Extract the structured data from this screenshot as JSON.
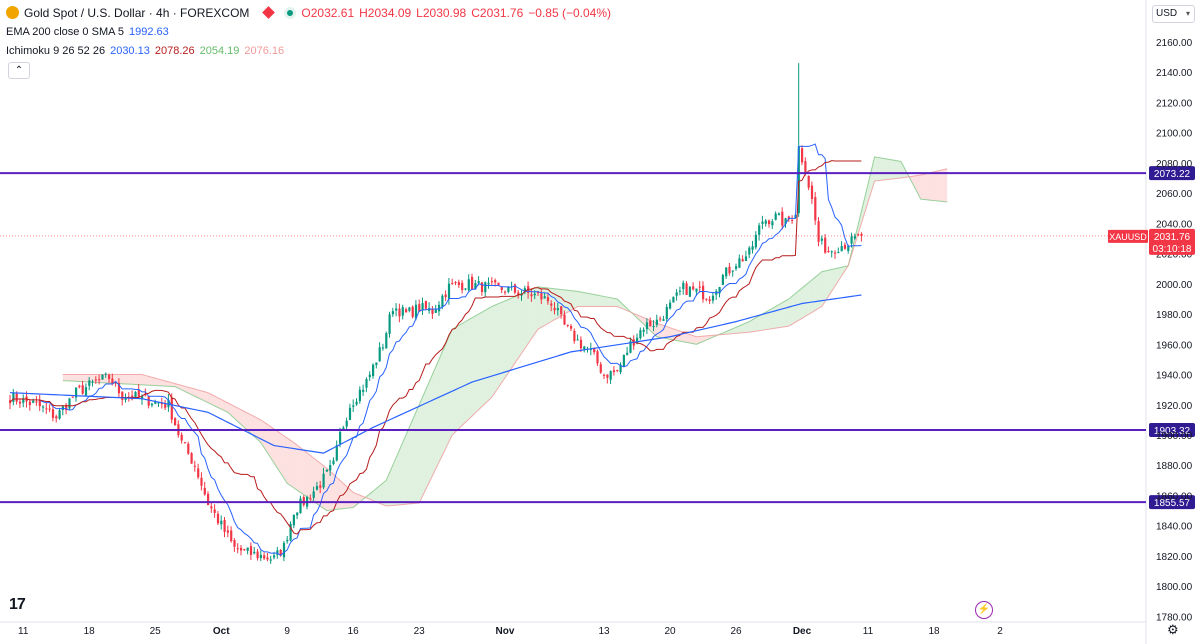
{
  "header": {
    "symbol_title": "Gold Spot / U.S. Dollar · 4h · FOREXCOM",
    "ohlc": {
      "o": "O2032.61",
      "h": "H2034.09",
      "l": "L2030.98",
      "c": "C2031.76",
      "change": "−0.85 (−0.04%)"
    },
    "ema_label": "EMA 200 close 0 SMA 5",
    "ema_value": "1992.63",
    "ichimoku_label": "Ichimoku 9 26 52 26",
    "ichimoku_values": [
      "2030.13",
      "2078.26",
      "2054.19",
      "2076.16"
    ],
    "collapse_icon": "chevron-up-icon",
    "currency": "USD"
  },
  "colors": {
    "up": "#089981",
    "down": "#f23645",
    "ema": "#2962ff",
    "tenkan": "#2962ff",
    "kijun": "#b71c1c",
    "hline": "#5b1fbf",
    "cloud_up": "#a5d6a7",
    "cloud_down": "#f7a9a7"
  },
  "chart_data": {
    "type": "candlestick",
    "symbol": "XAUUSD",
    "interval": "4h",
    "ylim": [
      1770,
      2170
    ],
    "y_ticks": [
      "2160.00",
      "2140.00",
      "2120.00",
      "2100.00",
      "2080.00",
      "2060.00",
      "2040.00",
      "2020.00",
      "2000.00",
      "1980.00",
      "1960.00",
      "1940.00",
      "1920.00",
      "1900.00",
      "1880.00",
      "1860.00",
      "1840.00",
      "1820.00",
      "1800.00",
      "1780.00"
    ],
    "x_ticks": [
      {
        "label": "11",
        "bar": 4
      },
      {
        "label": "18",
        "bar": 24
      },
      {
        "label": "25",
        "bar": 44
      },
      {
        "label": "Oct",
        "bar": 64
      },
      {
        "label": "9",
        "bar": 84
      },
      {
        "label": "16",
        "bar": 104
      },
      {
        "label": "23",
        "bar": 124
      },
      {
        "label": "Nov",
        "bar": 150
      },
      {
        "label": "13",
        "bar": 180
      },
      {
        "label": "20",
        "bar": 200
      },
      {
        "label": "26",
        "bar": 220
      },
      {
        "label": "Dec",
        "bar": 240
      },
      {
        "label": "11",
        "bar": 260
      },
      {
        "label": "18",
        "bar": 280
      },
      {
        "label": "2",
        "bar": 300
      }
    ],
    "horizontal_lines": [
      {
        "label": "2073.22",
        "value": 2073.22
      },
      {
        "label": "1903.32",
        "value": 1903.32
      },
      {
        "label": "1855.57",
        "value": 1855.57
      }
    ],
    "price_tag": {
      "label": "XAUUSD",
      "value_text": "2031.76",
      "countdown": "03:10:18",
      "value": 2031.76
    },
    "close_anchors": [
      [
        0,
        1925
      ],
      [
        8,
        1920
      ],
      [
        14,
        1912
      ],
      [
        20,
        1928
      ],
      [
        26,
        1935
      ],
      [
        30,
        1938
      ],
      [
        34,
        1926
      ],
      [
        38,
        1925
      ],
      [
        44,
        1922
      ],
      [
        48,
        1920
      ],
      [
        52,
        1895
      ],
      [
        56,
        1880
      ],
      [
        60,
        1855
      ],
      [
        64,
        1840
      ],
      [
        68,
        1825
      ],
      [
        72,
        1822
      ],
      [
        76,
        1820
      ],
      [
        80,
        1818
      ],
      [
        83,
        1826
      ],
      [
        86,
        1850
      ],
      [
        90,
        1858
      ],
      [
        94,
        1868
      ],
      [
        98,
        1880
      ],
      [
        100,
        1900
      ],
      [
        103,
        1920
      ],
      [
        108,
        1935
      ],
      [
        113,
        1960
      ],
      [
        116,
        1985
      ],
      [
        120,
        1980
      ],
      [
        124,
        1984
      ],
      [
        128,
        1982
      ],
      [
        133,
        1998
      ],
      [
        138,
        2000
      ],
      [
        144,
        1998
      ],
      [
        148,
        1997
      ],
      [
        153,
        1995
      ],
      [
        156,
        1994
      ],
      [
        160,
        1992
      ],
      [
        164,
        1988
      ],
      [
        168,
        1972
      ],
      [
        172,
        1962
      ],
      [
        176,
        1955
      ],
      [
        180,
        1940
      ],
      [
        184,
        1942
      ],
      [
        188,
        1960
      ],
      [
        192,
        1972
      ],
      [
        196,
        1975
      ],
      [
        200,
        1985
      ],
      [
        204,
        1997
      ],
      [
        208,
        1995
      ],
      [
        212,
        1992
      ],
      [
        216,
        2005
      ],
      [
        220,
        2014
      ],
      [
        224,
        2020
      ],
      [
        228,
        2042
      ],
      [
        232,
        2044
      ],
      [
        235,
        2040
      ],
      [
        238,
        2048
      ],
      [
        239,
        2090
      ],
      [
        241,
        2076
      ],
      [
        243,
        2055
      ],
      [
        245,
        2028
      ],
      [
        248,
        2022
      ],
      [
        251,
        2025
      ],
      [
        255,
        2028
      ],
      [
        258,
        2031.76
      ]
    ],
    "max_high": 2146,
    "ema200_anchors": [
      [
        0,
        1928
      ],
      [
        40,
        1924
      ],
      [
        60,
        1915
      ],
      [
        80,
        1893
      ],
      [
        95,
        1888
      ],
      [
        110,
        1905
      ],
      [
        140,
        1935
      ],
      [
        170,
        1955
      ],
      [
        200,
        1965
      ],
      [
        220,
        1975
      ],
      [
        240,
        1987
      ],
      [
        258,
        1992.63
      ]
    ],
    "cloud_span_a_anchors": [
      [
        16,
        1936
      ],
      [
        50,
        1932
      ],
      [
        66,
        1915
      ],
      [
        76,
        1895
      ],
      [
        84,
        1868
      ],
      [
        96,
        1850
      ],
      [
        104,
        1852
      ],
      [
        114,
        1870
      ],
      [
        124,
        1920
      ],
      [
        134,
        1970
      ],
      [
        146,
        1985
      ],
      [
        160,
        1998
      ],
      [
        172,
        1995
      ],
      [
        184,
        1990
      ],
      [
        196,
        1965
      ],
      [
        208,
        1960
      ],
      [
        224,
        1975
      ],
      [
        236,
        1990
      ],
      [
        246,
        2008
      ],
      [
        254,
        2012
      ],
      [
        262,
        2084
      ],
      [
        270,
        2081
      ],
      [
        276,
        2056
      ],
      [
        284,
        2054.19
      ]
    ],
    "cloud_span_b_anchors": [
      [
        16,
        1940
      ],
      [
        40,
        1940
      ],
      [
        60,
        1928
      ],
      [
        76,
        1910
      ],
      [
        86,
        1895
      ],
      [
        96,
        1878
      ],
      [
        104,
        1862
      ],
      [
        114,
        1853
      ],
      [
        124,
        1855
      ],
      [
        134,
        1900
      ],
      [
        146,
        1925
      ],
      [
        160,
        1970
      ],
      [
        172,
        1985
      ],
      [
        184,
        1985
      ],
      [
        196,
        1974
      ],
      [
        208,
        1965
      ],
      [
        224,
        1968
      ],
      [
        236,
        1972
      ],
      [
        246,
        1985
      ],
      [
        254,
        2012
      ],
      [
        262,
        2068
      ],
      [
        270,
        2070
      ],
      [
        276,
        2072
      ],
      [
        284,
        2076.16
      ]
    ],
    "bars_per_day": 6,
    "cloud_shift_bars": 26
  }
}
